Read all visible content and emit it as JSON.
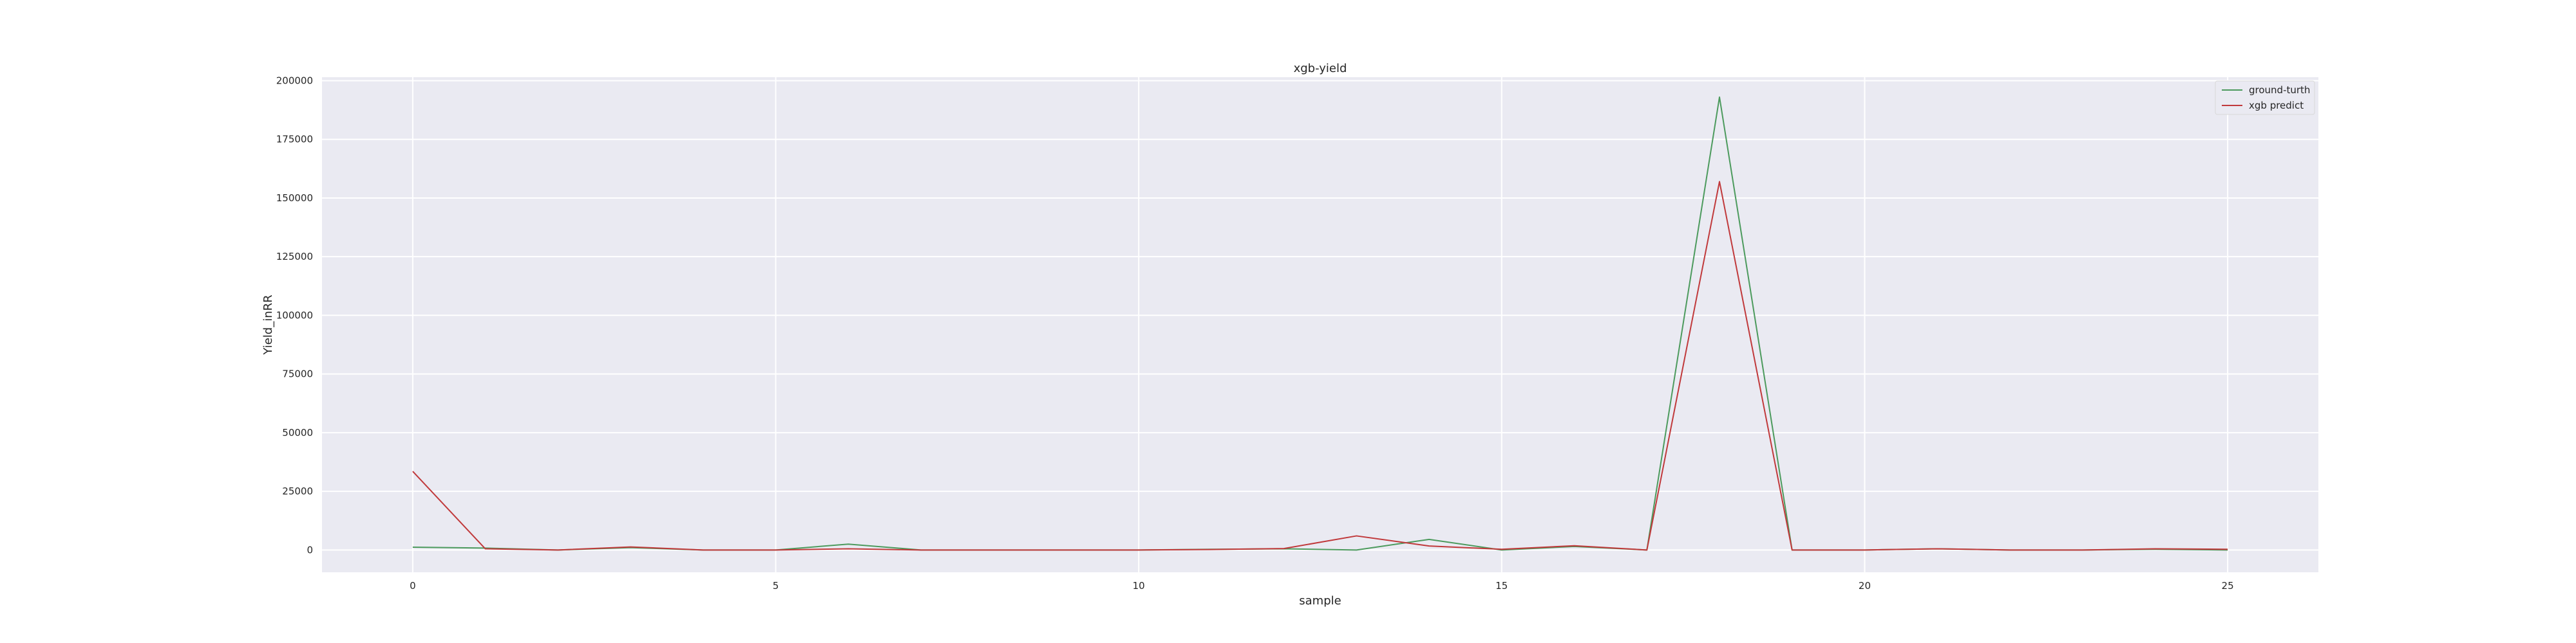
{
  "chart_data": {
    "type": "line",
    "title": "xgb-yield",
    "xlabel": "sample",
    "ylabel": "Yield_inRR",
    "x": [
      0,
      1,
      2,
      3,
      4,
      5,
      6,
      7,
      8,
      9,
      10,
      11,
      12,
      13,
      14,
      15,
      16,
      17,
      18,
      19,
      20,
      21,
      22,
      23,
      24,
      25
    ],
    "xlim": [
      -1.25,
      26.25
    ],
    "ylim": [
      -9500,
      201500
    ],
    "xticks": [
      0,
      5,
      10,
      15,
      20,
      25
    ],
    "yticks": [
      0,
      25000,
      50000,
      75000,
      100000,
      125000,
      150000,
      175000,
      200000
    ],
    "grid": true,
    "legend_position": "top-right",
    "series": [
      {
        "name": "ground-turth",
        "color": "#4c9a5d",
        "values": [
          1200,
          800,
          0,
          1000,
          0,
          0,
          2500,
          0,
          0,
          0,
          0,
          300,
          500,
          0,
          4500,
          0,
          1500,
          0,
          193000,
          0,
          0,
          500,
          0,
          0,
          300,
          0
        ]
      },
      {
        "name": "xgb predict",
        "color": "#c0393b",
        "values": [
          33500,
          500,
          0,
          1300,
          0,
          0,
          500,
          0,
          0,
          0,
          0,
          200,
          600,
          6000,
          1700,
          300,
          1800,
          0,
          157000,
          0,
          0,
          500,
          0,
          0,
          500,
          300
        ]
      }
    ]
  }
}
